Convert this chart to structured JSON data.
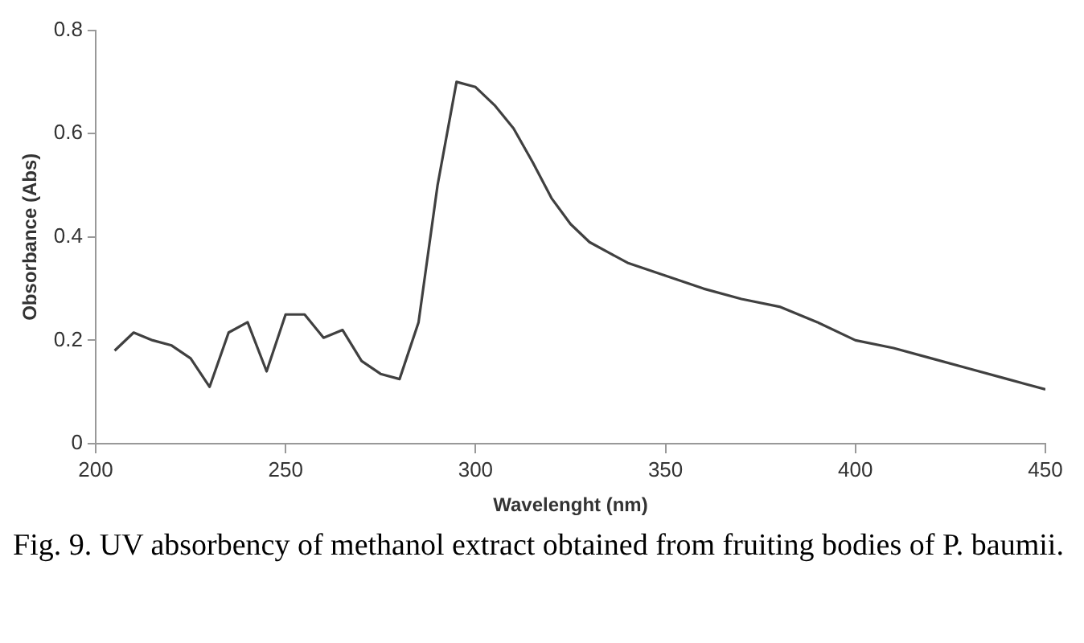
{
  "chart_data": {
    "type": "line",
    "xlabel": "Wavelenght (nm)",
    "ylabel": "Obsorbance (Abs)",
    "x": [
      205,
      210,
      215,
      220,
      225,
      230,
      235,
      240,
      245,
      250,
      255,
      260,
      265,
      270,
      275,
      280,
      285,
      290,
      295,
      300,
      305,
      310,
      315,
      320,
      325,
      330,
      335,
      340,
      350,
      360,
      370,
      380,
      390,
      400,
      410,
      420,
      430,
      440,
      450
    ],
    "series": [
      {
        "color": "#404040",
        "values": [
          0.18,
          0.215,
          0.2,
          0.19,
          0.165,
          0.11,
          0.215,
          0.235,
          0.14,
          0.25,
          0.25,
          0.205,
          0.22,
          0.16,
          0.135,
          0.125,
          0.235,
          0.5,
          0.7,
          0.69,
          0.655,
          0.61,
          0.545,
          0.475,
          0.425,
          0.39,
          0.37,
          0.35,
          0.325,
          0.3,
          0.28,
          0.265,
          0.235,
          0.2,
          0.185,
          0.165,
          0.145,
          0.125,
          0.105
        ]
      }
    ],
    "xlim": [
      200,
      450
    ],
    "xticks": [
      200,
      250,
      300,
      350,
      400,
      450
    ],
    "ylim": [
      0,
      0.8
    ],
    "yticks": [
      0,
      0.2,
      0.4,
      0.6,
      0.8
    ],
    "grid": false,
    "legend": false,
    "marker": "none",
    "line_style": "solid",
    "annotations": [
      "Fig. 9. UV absorbency of methanol extract obtained from fruiting bodies of P. baumii."
    ]
  }
}
